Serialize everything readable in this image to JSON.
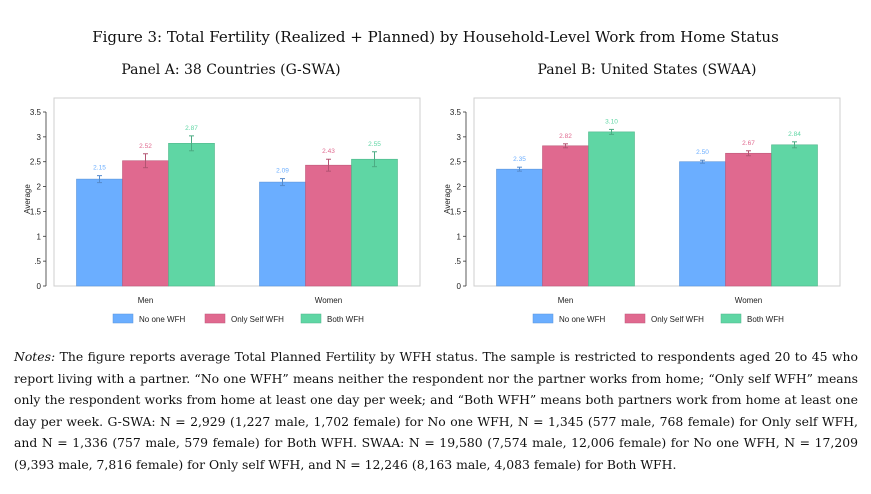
{
  "figure_title": "Figure 3: Total Fertility (Realized + Planned) by Household-Level Work from Home Status",
  "colors": {
    "No one WFH": "#6baeff",
    "Only Self WFH": "#e0698f",
    "Both WFH": "#5fd6a4"
  },
  "chart_data": [
    {
      "type": "bar",
      "title": "Panel A: 38 Countries (G-SWA)",
      "categories": [
        "Men",
        "Women"
      ],
      "ylabel": "Average",
      "ylim": [
        0,
        3.5
      ],
      "yticks": [
        0,
        0.5,
        1,
        1.5,
        2,
        2.5,
        3,
        3.5
      ],
      "ytick_labels": [
        "0",
        ".5",
        "1",
        "1.5",
        "2",
        "2.5",
        "3",
        "3.5"
      ],
      "legend": [
        "No one WFH",
        "Only Self WFH",
        "Both WFH"
      ],
      "series": [
        {
          "name": "No one WFH",
          "values": [
            2.15,
            2.09
          ],
          "labels": [
            "2.15",
            "2.09"
          ],
          "err": [
            0.07,
            0.07
          ]
        },
        {
          "name": "Only Self WFH",
          "values": [
            2.52,
            2.43
          ],
          "labels": [
            "2.52",
            "2.43"
          ],
          "err": [
            0.14,
            0.12
          ]
        },
        {
          "name": "Both WFH",
          "values": [
            2.87,
            2.55
          ],
          "labels": [
            "2.87",
            "2.55"
          ],
          "err": [
            0.15,
            0.15
          ]
        }
      ]
    },
    {
      "type": "bar",
      "title": "Panel B: United States (SWAA)",
      "categories": [
        "Men",
        "Women"
      ],
      "ylabel": "Average",
      "ylim": [
        0,
        3.5
      ],
      "yticks": [
        0,
        0.5,
        1,
        1.5,
        2,
        2.5,
        3,
        3.5
      ],
      "ytick_labels": [
        "0",
        ".5",
        "1",
        "1.5",
        "2",
        "2.5",
        "3",
        "3.5"
      ],
      "legend": [
        "No one WFH",
        "Only Self WFH",
        "Both WFH"
      ],
      "series": [
        {
          "name": "No one WFH",
          "values": [
            2.35,
            2.5
          ],
          "labels": [
            "2.35",
            "2.50"
          ],
          "err": [
            0.04,
            0.03
          ]
        },
        {
          "name": "Only Self WFH",
          "values": [
            2.82,
            2.67
          ],
          "labels": [
            "2.82",
            "2.67"
          ],
          "err": [
            0.04,
            0.05
          ]
        },
        {
          "name": "Both WFH",
          "values": [
            3.1,
            2.84
          ],
          "labels": [
            "3.10",
            "2.84"
          ],
          "err": [
            0.05,
            0.06
          ]
        }
      ]
    }
  ],
  "notes": {
    "label": "Notes:",
    "text": "The figure reports average Total Planned Fertility by WFH status. The sample is restricted to respondents aged 20 to 45 who report living with a partner. “No one WFH” means neither the respondent nor the partner works from home; “Only self WFH” means only the respondent works from home at least one day per week; and “Both WFH” means both partners work from home at least one day per week. G-SWA: N = 2,929 (1,227 male, 1,702 female) for No one WFH, N = 1,345 (577 male, 768 female) for Only self WFH, and N = 1,336 (757 male, 579 female) for Both WFH. SWAA: N = 19,580 (7,574 male, 12,006 female) for No one WFH, N = 17,209 (9,393 male, 7,816 female) for Only self WFH, and N = 12,246 (8,163 male, 4,083 female) for Both WFH."
  }
}
